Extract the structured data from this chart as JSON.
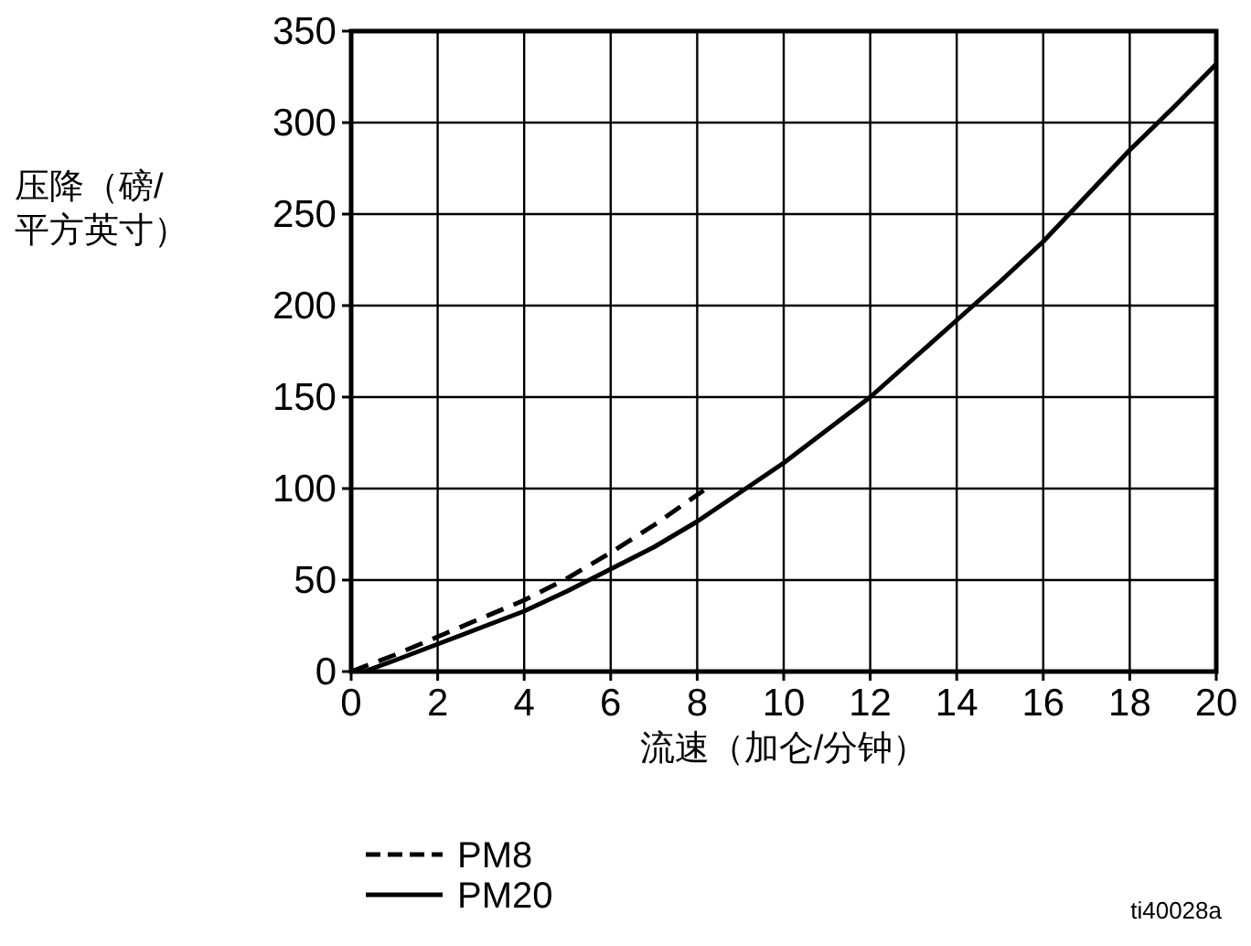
{
  "chart_data": {
    "type": "line",
    "xlabel": "流速（加仑/分钟）",
    "ylabel": "压降（磅/\n平方英寸）",
    "xlim": [
      0,
      20
    ],
    "ylim": [
      0,
      350
    ],
    "xticks": [
      0,
      2,
      4,
      6,
      8,
      10,
      12,
      14,
      16,
      18,
      20
    ],
    "yticks": [
      0,
      50,
      100,
      150,
      200,
      250,
      300,
      350
    ],
    "grid": true,
    "legend": "bottom left",
    "series": [
      {
        "name": "PM8",
        "color": "#000000",
        "line_style": "dashed",
        "x": [
          0,
          1,
          2,
          3,
          4,
          5,
          6,
          7,
          8.15
        ],
        "values": [
          0,
          9,
          19,
          29,
          39,
          51,
          65,
          80,
          99
        ]
      },
      {
        "name": "PM20",
        "color": "#000000",
        "line_style": "solid",
        "x": [
          0.3,
          1,
          2,
          3,
          4,
          5,
          6,
          7,
          8,
          9,
          10,
          11,
          12,
          13,
          14,
          15,
          16,
          17,
          18,
          19,
          20
        ],
        "values": [
          0,
          6,
          15,
          24,
          33,
          44,
          56,
          68,
          82,
          98,
          114,
          132,
          150,
          171,
          192,
          213,
          235,
          260,
          285,
          308,
          332
        ]
      }
    ],
    "annotations": [
      "ti40028a"
    ]
  }
}
